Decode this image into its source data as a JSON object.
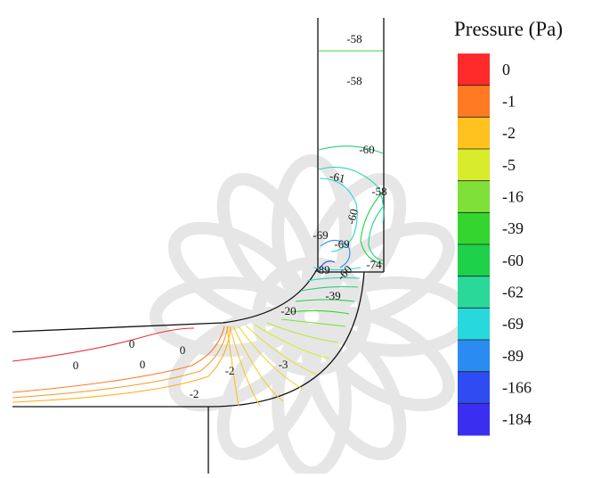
{
  "figure": {
    "legend_title": "Pressure (Pa)",
    "colorbar": {
      "levels": [
        {
          "label": "0",
          "color": "#ff2a2a"
        },
        {
          "label": "-1",
          "color": "#ff7a22"
        },
        {
          "label": "-2",
          "color": "#ffc21e"
        },
        {
          "label": "-5",
          "color": "#d8ec2c"
        },
        {
          "label": "-16",
          "color": "#7fe03a"
        },
        {
          "label": "-39",
          "color": "#33d52e"
        },
        {
          "label": "-60",
          "color": "#1fd04a"
        },
        {
          "label": "-62",
          "color": "#2ad89a"
        },
        {
          "label": "-69",
          "color": "#27d8dc"
        },
        {
          "label": "-89",
          "color": "#2a8cf0"
        },
        {
          "label": "-166",
          "color": "#2f4cf2"
        },
        {
          "label": "-184",
          "color": "#3a2ff0"
        }
      ]
    },
    "contour_labels": [
      "-58",
      "-58",
      "-60",
      "-61",
      "-58",
      "-60",
      "-69",
      "-69",
      "-89",
      "-60",
      "-74",
      "-39",
      "-20",
      "0",
      "0",
      "0",
      "0",
      "-2",
      "-3",
      "-2"
    ]
  }
}
